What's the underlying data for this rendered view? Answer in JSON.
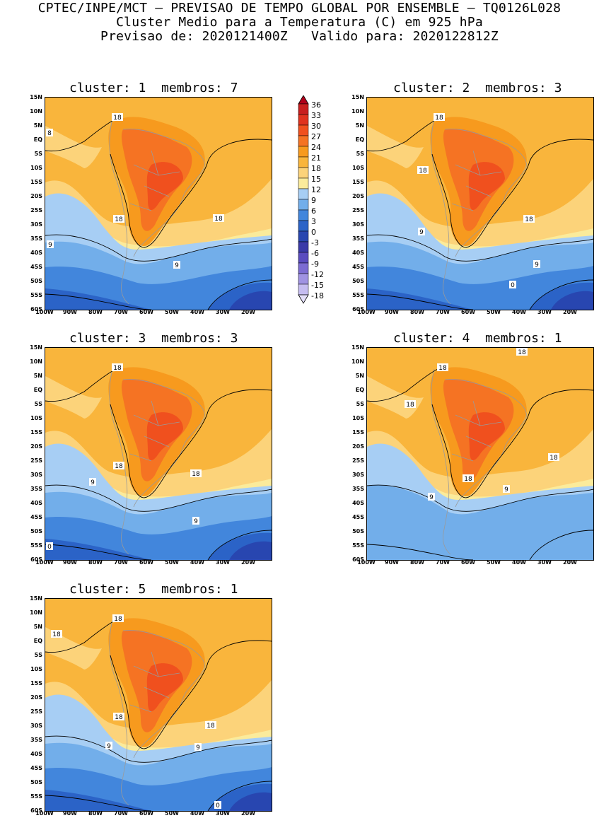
{
  "header": {
    "line1": "CPTEC/INPE/MCT – PREVISAO DE TEMPO GLOBAL POR ENSEMBLE – TQ0126L028",
    "line2": "Cluster Medio para a Temperatura (C) em 925 hPa",
    "line3": "Previsao de: 2020121400Z   Valido para: 2020122812Z"
  },
  "lat_labels": [
    "15N",
    "10N",
    "5N",
    "EQ",
    "5S",
    "10S",
    "15S",
    "20S",
    "25S",
    "30S",
    "35S",
    "40S",
    "45S",
    "50S",
    "55S",
    "60S"
  ],
  "lon_labels": [
    "100W",
    "90W",
    "80W",
    "70W",
    "60W",
    "50W",
    "40W",
    "30W",
    "20W"
  ],
  "colorbar": {
    "labels": [
      "36",
      "33",
      "30",
      "27",
      "24",
      "21",
      "18",
      "15",
      "12",
      "9",
      "6",
      "3",
      "0",
      "-3",
      "-6",
      "-9",
      "-12",
      "-15",
      "-18"
    ],
    "colors": [
      "#b0001a",
      "#c81e1e",
      "#e0321e",
      "#f0501e",
      "#f57323",
      "#f79a1e",
      "#f9b53c",
      "#fcd37a",
      "#fbeb9b",
      "#a7cef4",
      "#72aeea",
      "#4286dc",
      "#2b63c7",
      "#2846b0",
      "#3a3aa8",
      "#5a4cbf",
      "#7c6cd2",
      "#a093e2",
      "#c5bcf0",
      "#e4dff9"
    ]
  },
  "panels": [
    {
      "title": "cluster: 1  membros: 7",
      "contour_labels": [
        {
          "text": "18"
        },
        {
          "text": "18"
        },
        {
          "text": "18"
        },
        {
          "text": "9"
        },
        {
          "text": "9"
        },
        {
          "text": "8"
        }
      ]
    },
    {
      "title": "cluster: 2  membros: 3",
      "contour_labels": [
        {
          "text": "18"
        },
        {
          "text": "18"
        },
        {
          "text": "18"
        },
        {
          "text": "9"
        },
        {
          "text": "9"
        },
        {
          "text": "0"
        }
      ]
    },
    {
      "title": "cluster: 3  membros: 3",
      "contour_labels": [
        {
          "text": "18"
        },
        {
          "text": "18"
        },
        {
          "text": "18"
        },
        {
          "text": "9"
        },
        {
          "text": "9"
        },
        {
          "text": "0"
        }
      ]
    },
    {
      "title": "cluster: 4  membros: 1",
      "contour_labels": [
        {
          "text": "18"
        },
        {
          "text": "18"
        },
        {
          "text": "18"
        },
        {
          "text": "18"
        },
        {
          "text": "18"
        },
        {
          "text": "9"
        },
        {
          "text": "9"
        }
      ]
    },
    {
      "title": "cluster: 5  membros: 1",
      "contour_labels": [
        {
          "text": "18"
        },
        {
          "text": "18"
        },
        {
          "text": "18"
        },
        {
          "text": "18"
        },
        {
          "text": "9"
        },
        {
          "text": "9"
        },
        {
          "text": "0"
        }
      ]
    }
  ]
}
